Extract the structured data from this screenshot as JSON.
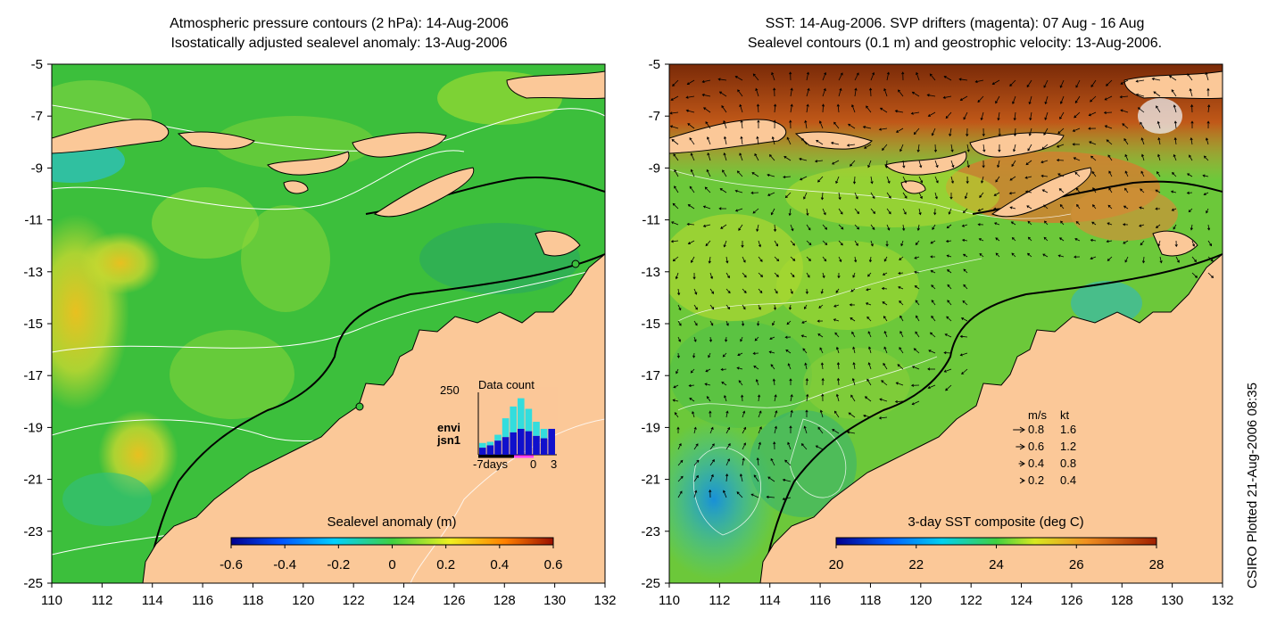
{
  "left_panel": {
    "title_line1": "Atmospheric pressure contours (2 hPa): 14-Aug-2006",
    "title_line2": "Isostatically adjusted sealevel anomaly: 13-Aug-2006",
    "colorbar": {
      "label": "Sealevel anomaly (m)",
      "ticks": [
        "-0.6",
        "-0.4",
        "-0.2",
        "0",
        "0.2",
        "0.4",
        "0.6"
      ],
      "range": [
        -0.6,
        0.6
      ]
    },
    "inset": {
      "title": "Data count",
      "y_max_label": "250",
      "series": [
        "envi",
        "jsn1"
      ],
      "series_colors": {
        "envi": "#33dddd",
        "jsn1": "#1010cc"
      },
      "x_labels": [
        "-7days",
        "0",
        "3"
      ],
      "envi_counts": [
        20,
        15,
        25,
        80,
        110,
        130,
        95,
        60,
        40,
        0
      ],
      "jsn1_counts": [
        30,
        40,
        60,
        75,
        95,
        110,
        100,
        80,
        70,
        110
      ]
    }
  },
  "right_panel": {
    "title_line1": "SST: 14-Aug-2006. SVP drifters (magenta): 07 Aug - 16 Aug",
    "title_line2": "Sealevel contours (0.1 m) and geostrophic velocity: 13-Aug-2006.",
    "colorbar": {
      "label": "3-day SST composite (deg C)",
      "ticks": [
        "20",
        "22",
        "24",
        "26",
        "28"
      ],
      "range": [
        20,
        28
      ]
    },
    "velocity_legend": {
      "header_ms": "m/s",
      "header_kt": "kt",
      "rows": [
        {
          "ms": "0.8",
          "kt": "1.6"
        },
        {
          "ms": "0.6",
          "kt": "1.2"
        },
        {
          "ms": "0.4",
          "kt": "0.8"
        },
        {
          "ms": "0.2",
          "kt": "0.4"
        }
      ]
    }
  },
  "axes": {
    "lon_ticks": [
      110,
      112,
      114,
      116,
      118,
      120,
      122,
      124,
      126,
      128,
      130,
      132
    ],
    "lat_ticks": [
      -5,
      -7,
      -9,
      -11,
      -13,
      -15,
      -17,
      -19,
      -21,
      -23,
      -25
    ],
    "lon_range": [
      110,
      132
    ],
    "lat_range": [
      -25,
      -5
    ]
  },
  "credit": "CSIRO Plotted 21-Aug-2006 08:35",
  "colors": {
    "land": "#fbc898",
    "ocean_left": "#3cbf3c",
    "ocean_right": "#6cc83a"
  }
}
